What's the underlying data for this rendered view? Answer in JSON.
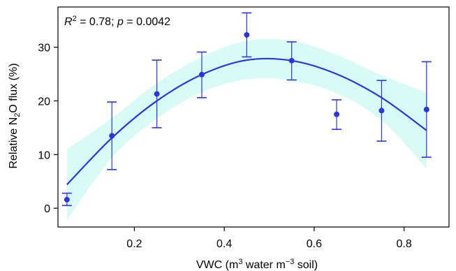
{
  "chart_data": {
    "type": "scatter",
    "annotation": {
      "r2_symbol": "R",
      "r2_superscript": "2",
      "r2_value": " = 0.78; ",
      "p_symbol": "p",
      "p_value": " = 0.0042"
    },
    "xlabel": {
      "prefix": "VWC (m",
      "sup1": "3",
      "middle": " water m",
      "sup2": "−3",
      "suffix": " soil)"
    },
    "ylabel": {
      "prefix": "Relative N",
      "sub": "2",
      "suffix": "O flux (%)"
    },
    "xlim": [
      0.03,
      0.9
    ],
    "ylim": [
      -3.5,
      37.5
    ],
    "x_ticks": [
      {
        "value": 0.2,
        "label": "0.2"
      },
      {
        "value": 0.4,
        "label": "0.4"
      },
      {
        "value": 0.6,
        "label": "0.6"
      },
      {
        "value": 0.8,
        "label": "0.8"
      }
    ],
    "y_ticks": [
      {
        "value": 0,
        "label": "0"
      },
      {
        "value": 10,
        "label": "10"
      },
      {
        "value": 20,
        "label": "20"
      },
      {
        "value": 30,
        "label": "30"
      }
    ],
    "points": [
      {
        "x": 0.05,
        "y": 1.6,
        "lower": 0.5,
        "upper": 2.8
      },
      {
        "x": 0.15,
        "y": 13.5,
        "lower": 7.2,
        "upper": 19.8
      },
      {
        "x": 0.25,
        "y": 21.3,
        "lower": 15.0,
        "upper": 27.6
      },
      {
        "x": 0.35,
        "y": 24.9,
        "lower": 20.6,
        "upper": 29.1
      },
      {
        "x": 0.45,
        "y": 32.3,
        "lower": 28.2,
        "upper": 36.4
      },
      {
        "x": 0.55,
        "y": 27.5,
        "lower": 23.9,
        "upper": 31.0
      },
      {
        "x": 0.65,
        "y": 17.5,
        "lower": 14.7,
        "upper": 20.2
      },
      {
        "x": 0.75,
        "y": 18.2,
        "lower": 12.5,
        "upper": 23.8
      },
      {
        "x": 0.85,
        "y": 18.4,
        "lower": 9.5,
        "upper": 27.3
      }
    ],
    "fit_curve": [
      {
        "x": 0.05,
        "y": 4.4
      },
      {
        "x": 0.15,
        "y": 13.1
      },
      {
        "x": 0.25,
        "y": 20.0
      },
      {
        "x": 0.35,
        "y": 24.9
      },
      {
        "x": 0.45,
        "y": 27.6
      },
      {
        "x": 0.55,
        "y": 27.5
      },
      {
        "x": 0.65,
        "y": 25.0
      },
      {
        "x": 0.75,
        "y": 20.6
      },
      {
        "x": 0.85,
        "y": 14.5
      }
    ],
    "ci_upper": [
      {
        "x": 0.05,
        "y": 11.0
      },
      {
        "x": 0.15,
        "y": 16.8
      },
      {
        "x": 0.25,
        "y": 23.3
      },
      {
        "x": 0.35,
        "y": 28.2
      },
      {
        "x": 0.45,
        "y": 31.2
      },
      {
        "x": 0.55,
        "y": 31.2
      },
      {
        "x": 0.65,
        "y": 28.6
      },
      {
        "x": 0.75,
        "y": 24.8
      },
      {
        "x": 0.85,
        "y": 21.6
      }
    ],
    "ci_lower": [
      {
        "x": 0.05,
        "y": -2.2
      },
      {
        "x": 0.15,
        "y": 9.4
      },
      {
        "x": 0.25,
        "y": 16.7
      },
      {
        "x": 0.35,
        "y": 21.6
      },
      {
        "x": 0.45,
        "y": 24.0
      },
      {
        "x": 0.55,
        "y": 23.8
      },
      {
        "x": 0.65,
        "y": 21.4
      },
      {
        "x": 0.75,
        "y": 16.4
      },
      {
        "x": 0.85,
        "y": 7.4
      }
    ],
    "colors": {
      "points": "#2a35e8",
      "curve": "#2a35e8",
      "ci_band": "#d9fbf5"
    }
  }
}
